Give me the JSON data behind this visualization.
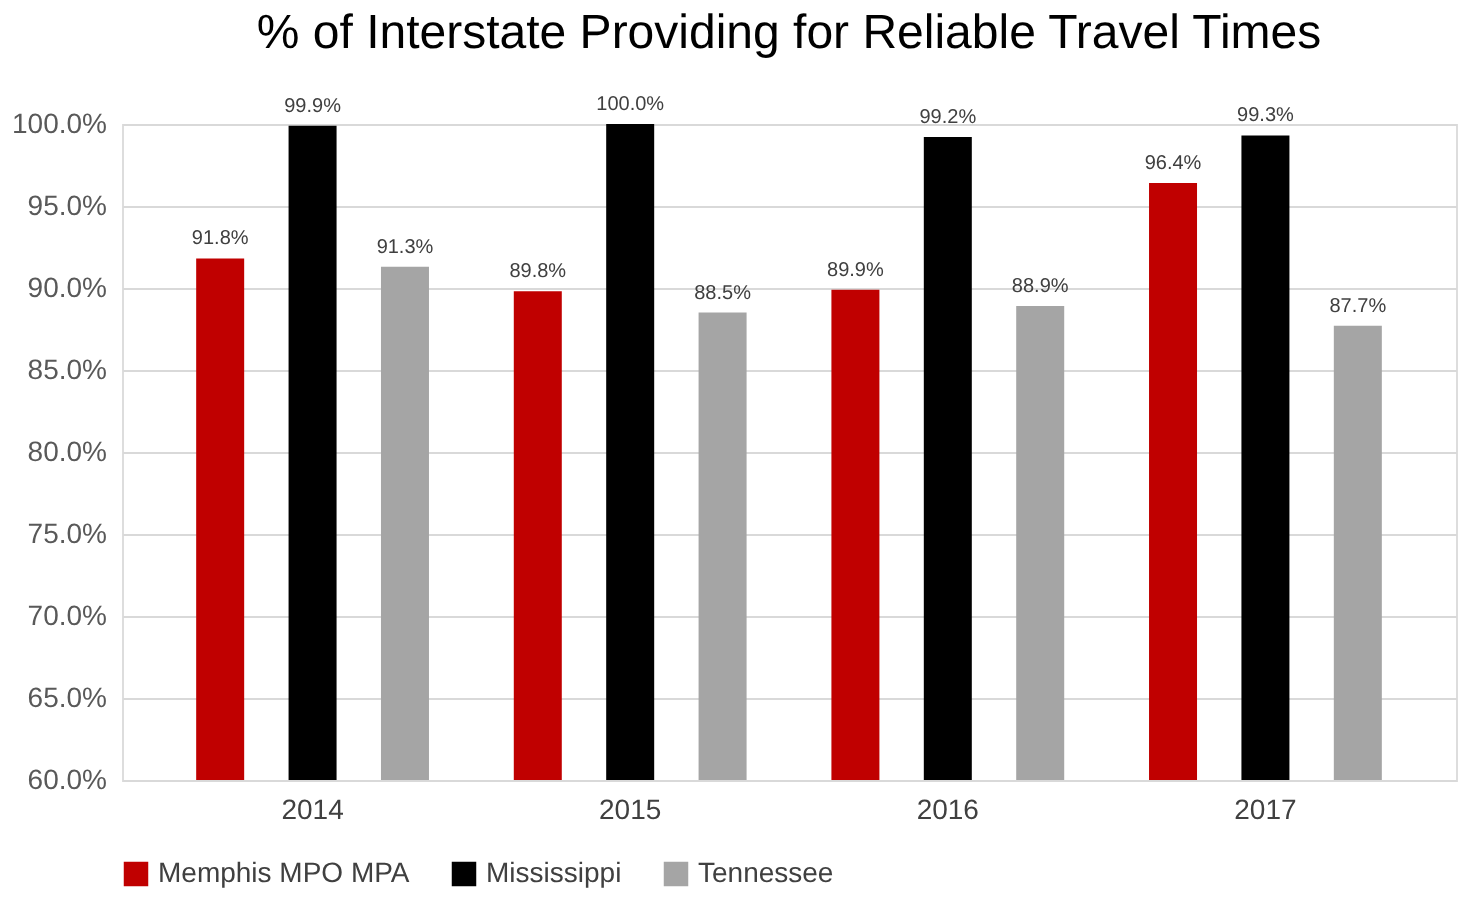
{
  "chart_data": {
    "type": "bar",
    "title": "% of Interstate Providing for Reliable Travel Times",
    "categories": [
      "2014",
      "2015",
      "2016",
      "2017"
    ],
    "series": [
      {
        "name": "Memphis MPO MPA",
        "color": "#c00000",
        "values": [
          91.8,
          89.8,
          89.9,
          96.4
        ],
        "value_labels": [
          "91.8%",
          "89.8%",
          "89.9%",
          "96.4%"
        ]
      },
      {
        "name": "Mississippi",
        "color": "#000000",
        "values": [
          99.9,
          100.0,
          99.2,
          99.3
        ],
        "value_labels": [
          "99.9%",
          "100.0%",
          "99.2%",
          "99.3%"
        ]
      },
      {
        "name": "Tennessee",
        "color": "#a5a5a5",
        "values": [
          91.3,
          88.5,
          88.9,
          87.7
        ],
        "value_labels": [
          "91.3%",
          "88.5%",
          "88.9%",
          "87.7%"
        ]
      }
    ],
    "ylim": [
      60,
      100
    ],
    "yticks": [
      {
        "value": 60,
        "label": "60.0%"
      },
      {
        "value": 65,
        "label": "65.0%"
      },
      {
        "value": 70,
        "label": "70.0%"
      },
      {
        "value": 75,
        "label": "75.0%"
      },
      {
        "value": 80,
        "label": "80.0%"
      },
      {
        "value": 85,
        "label": "85.0%"
      },
      {
        "value": 90,
        "label": "90.0%"
      },
      {
        "value": 95,
        "label": "95.0%"
      },
      {
        "value": 100,
        "label": "100.0%"
      }
    ],
    "grid": "y",
    "legend": "bottom"
  }
}
